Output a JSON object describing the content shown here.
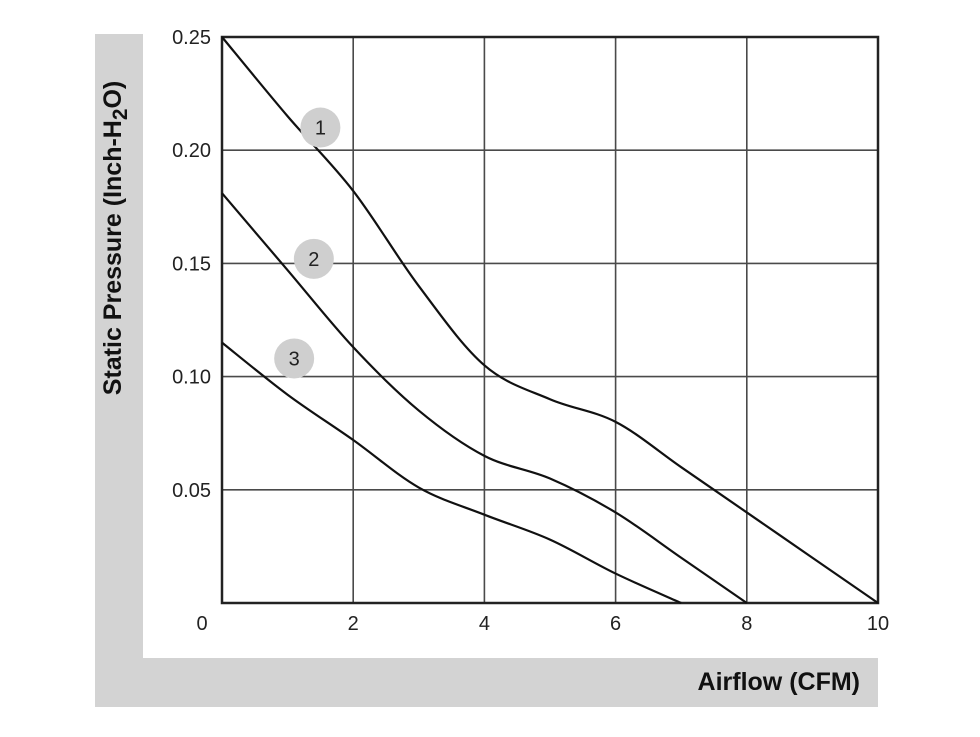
{
  "chart_data": {
    "type": "line",
    "xlabel": "Airflow (CFM)",
    "ylabel_parts": {
      "prefix": "Static Pressure (Inch-H",
      "sub": "2",
      "suffix": "O)"
    },
    "xlim": [
      0,
      10
    ],
    "ylim": [
      0,
      0.25
    ],
    "x_ticks": [
      0,
      2,
      4,
      6,
      8,
      10
    ],
    "y_ticks": [
      0.05,
      0.1,
      0.15,
      0.2,
      0.25
    ],
    "x_tick_labels": [
      "0",
      "2",
      "4",
      "6",
      "8",
      "10"
    ],
    "y_tick_labels": [
      "0.05",
      "0.10",
      "0.15",
      "0.20",
      "0.25"
    ],
    "grid": true,
    "series": [
      {
        "label": "1",
        "label_at": [
          1.5,
          0.21
        ],
        "points": [
          [
            0,
            0.25
          ],
          [
            1,
            0.215
          ],
          [
            2,
            0.182
          ],
          [
            3,
            0.14
          ],
          [
            4,
            0.105
          ],
          [
            5,
            0.09
          ],
          [
            6,
            0.08
          ],
          [
            7,
            0.06
          ],
          [
            8,
            0.04
          ],
          [
            9,
            0.02
          ],
          [
            10,
            0.0
          ]
        ]
      },
      {
        "label": "2",
        "label_at": [
          1.4,
          0.152
        ],
        "points": [
          [
            0,
            0.181
          ],
          [
            1,
            0.147
          ],
          [
            2,
            0.113
          ],
          [
            3,
            0.085
          ],
          [
            4,
            0.065
          ],
          [
            5,
            0.055
          ],
          [
            6,
            0.04
          ],
          [
            7,
            0.02
          ],
          [
            8,
            0.0
          ]
        ]
      },
      {
        "label": "3",
        "label_at": [
          1.1,
          0.108
        ],
        "points": [
          [
            0,
            0.115
          ],
          [
            1,
            0.092
          ],
          [
            2,
            0.072
          ],
          [
            3,
            0.051
          ],
          [
            4,
            0.039
          ],
          [
            5,
            0.028
          ],
          [
            6,
            0.013
          ],
          [
            7,
            0.0
          ]
        ]
      }
    ],
    "colors": {
      "line": "#111111",
      "grid": "#4a4a4a",
      "frame": "#d3d3d3",
      "badge": "#cfcfcf"
    }
  }
}
